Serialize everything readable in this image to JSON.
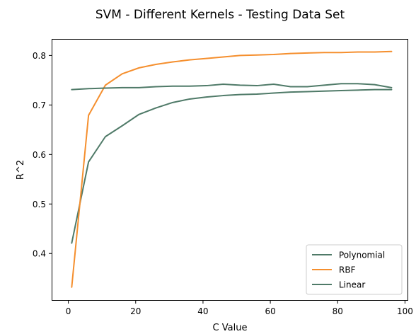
{
  "chart_data": {
    "type": "line",
    "title": "SVM - Different Kernels - Testing Data Set",
    "xlabel": "C Value",
    "ylabel": "R^2",
    "xlim": [
      -4.75,
      100.75
    ],
    "ylim": [
      0.306,
      0.832
    ],
    "xticks": [
      0,
      20,
      40,
      60,
      80,
      100
    ],
    "yticks": [
      0.4,
      0.5,
      0.6,
      0.7,
      0.8
    ],
    "xtick_labels": [
      "0",
      "20",
      "40",
      "60",
      "80",
      "100"
    ],
    "ytick_labels": [
      "0.4",
      "0.5",
      "0.6",
      "0.7",
      "0.8"
    ],
    "grid": false,
    "legend_position": "lower right",
    "x": [
      1,
      6,
      11,
      16,
      21,
      26,
      31,
      36,
      41,
      46,
      51,
      56,
      61,
      66,
      71,
      76,
      81,
      86,
      91,
      96
    ],
    "series": [
      {
        "name": "Polynomial",
        "color": "#4f7a68",
        "values": [
          0.421,
          0.585,
          0.636,
          0.658,
          0.681,
          0.694,
          0.705,
          0.712,
          0.716,
          0.719,
          0.721,
          0.722,
          0.724,
          0.726,
          0.727,
          0.728,
          0.729,
          0.73,
          0.731,
          0.731
        ]
      },
      {
        "name": "RBF",
        "color": "#f58f2e",
        "values": [
          0.332,
          0.679,
          0.74,
          0.763,
          0.775,
          0.782,
          0.787,
          0.791,
          0.794,
          0.797,
          0.8,
          0.801,
          0.802,
          0.804,
          0.805,
          0.806,
          0.806,
          0.807,
          0.807,
          0.808
        ]
      },
      {
        "name": "Linear",
        "color": "#4f7a68",
        "values": [
          0.731,
          0.733,
          0.734,
          0.735,
          0.735,
          0.737,
          0.738,
          0.738,
          0.739,
          0.742,
          0.74,
          0.739,
          0.742,
          0.737,
          0.737,
          0.74,
          0.743,
          0.743,
          0.741,
          0.735
        ]
      }
    ]
  }
}
